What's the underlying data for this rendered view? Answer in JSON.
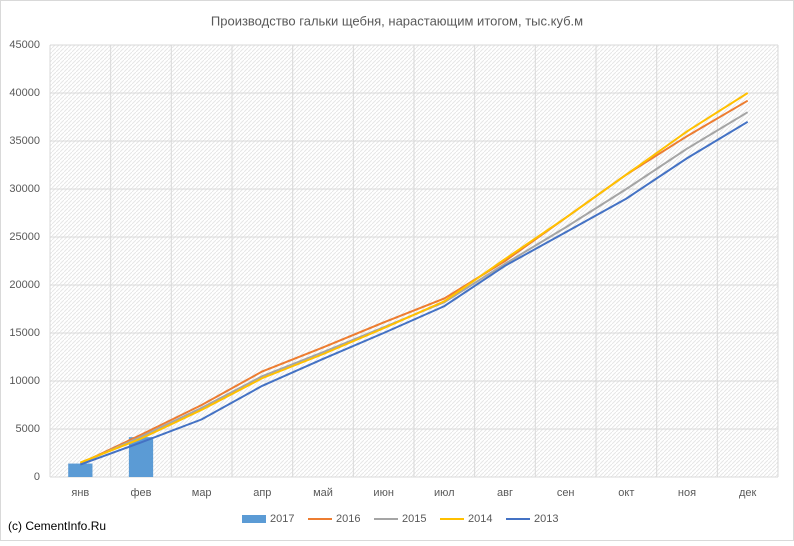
{
  "chart_data": {
    "type": "line",
    "title": "Производство гальки щебня, нарастающим итогом, тыс.куб.м",
    "source": "(c) CementInfo.Ru",
    "categories": [
      "янв",
      "фев",
      "мар",
      "апр",
      "май",
      "июн",
      "июл",
      "авг",
      "сен",
      "окт",
      "ноя",
      "дек"
    ],
    "series": [
      {
        "name": "2017",
        "type": "bar",
        "color": "#5b9bd5",
        "values": [
          1400,
          4150,
          null,
          null,
          null,
          null,
          null,
          null,
          null,
          null,
          null,
          null
        ]
      },
      {
        "name": "2016",
        "type": "line",
        "color": "#ed7d31",
        "values": [
          1400,
          4400,
          7500,
          11000,
          13500,
          16100,
          18600,
          22500,
          27000,
          31500,
          35500,
          39200
        ]
      },
      {
        "name": "2015",
        "type": "line",
        "color": "#a5a5a5",
        "values": [
          1400,
          4200,
          7200,
          10500,
          13000,
          15600,
          18200,
          22200,
          26000,
          30000,
          34200,
          38000
        ]
      },
      {
        "name": "2014",
        "type": "line",
        "color": "#ffc000",
        "values": [
          1500,
          4000,
          7000,
          10300,
          12800,
          15500,
          18300,
          22700,
          27000,
          31500,
          36000,
          40000
        ]
      },
      {
        "name": "2013",
        "type": "line",
        "color": "#4472c4",
        "values": [
          1300,
          3600,
          6000,
          9500,
          12300,
          15000,
          17800,
          22000,
          25500,
          29000,
          33200,
          37000
        ]
      }
    ],
    "ylim": [
      0,
      45000
    ],
    "yticks": [
      0,
      5000,
      10000,
      15000,
      20000,
      25000,
      30000,
      35000,
      40000,
      45000
    ],
    "grid": true,
    "legend": "bottom"
  }
}
